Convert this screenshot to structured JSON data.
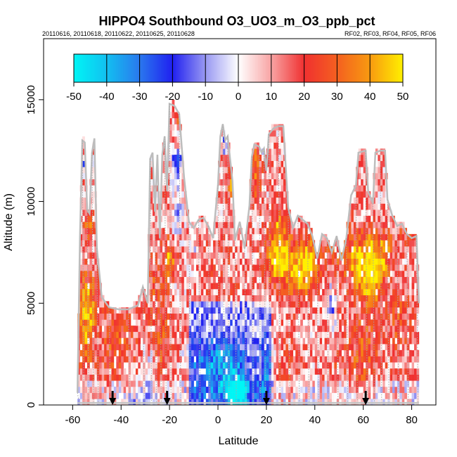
{
  "chart_data": {
    "type": "heatmap",
    "title": "HIPPO4 Southbound O3_UO3_m_O3_ppb_pct",
    "subtitle_left": "20110616, 20110618, 20110622, 20110625, 20110628",
    "subtitle_right": "RF02, RF03, RF04, RF05, RF06",
    "xlabel": "Latitude",
    "ylabel": "Altitude (m)",
    "xlim": [
      -72,
      90
    ],
    "ylim": [
      0,
      18000
    ],
    "x_ticks": [
      -60,
      -40,
      -20,
      0,
      20,
      40,
      60,
      80
    ],
    "y_ticks": [
      0,
      5000,
      10000,
      15000
    ],
    "colorbar": {
      "min": -50,
      "max": 50,
      "ticks": [
        -50,
        -40,
        -30,
        -20,
        -10,
        0,
        10,
        20,
        30,
        40,
        50
      ],
      "stops": [
        {
          "v": -50,
          "c": "#00f5f5"
        },
        {
          "v": -40,
          "c": "#12c0f0"
        },
        {
          "v": -30,
          "c": "#2a78ee"
        },
        {
          "v": -20,
          "c": "#2020f0"
        },
        {
          "v": -10,
          "c": "#9898f2"
        },
        {
          "v": 0,
          "c": "#ffffff"
        },
        {
          "v": 10,
          "c": "#f8a4a4"
        },
        {
          "v": 20,
          "c": "#f03030"
        },
        {
          "v": 30,
          "c": "#f46020"
        },
        {
          "v": 40,
          "c": "#f89a10"
        },
        {
          "v": 50,
          "c": "#fff000"
        }
      ]
    },
    "arrows_latitude": [
      -43.5,
      -21,
      20,
      61
    ],
    "flight_ceiling": [
      [
        -58,
        600
      ],
      [
        -57,
        8200
      ],
      [
        -56,
        13000
      ],
      [
        -55,
        12900
      ],
      [
        -54,
        9600
      ],
      [
        -53,
        9400
      ],
      [
        -52,
        12400
      ],
      [
        -51,
        13100
      ],
      [
        -50,
        7700
      ],
      [
        -48,
        5300
      ],
      [
        -45,
        4800
      ],
      [
        -41,
        4700
      ],
      [
        -37,
        4700
      ],
      [
        -33,
        4900
      ],
      [
        -31,
        5800
      ],
      [
        -29,
        5000
      ],
      [
        -28,
        12100
      ],
      [
        -27,
        12400
      ],
      [
        -26,
        9500
      ],
      [
        -25,
        12300
      ],
      [
        -24,
        8200
      ],
      [
        -23,
        12300
      ],
      [
        -22,
        13200
      ],
      [
        -21,
        10500
      ],
      [
        -20,
        14800
      ],
      [
        -18,
        14700
      ],
      [
        -16,
        14300
      ],
      [
        -14,
        11200
      ],
      [
        -12,
        9000
      ],
      [
        -10,
        8700
      ],
      [
        -8,
        9100
      ],
      [
        -6,
        9200
      ],
      [
        -4,
        8800
      ],
      [
        -2,
        8200
      ],
      [
        0,
        10800
      ],
      [
        1,
        13200
      ],
      [
        2,
        13800
      ],
      [
        3,
        13000
      ],
      [
        4,
        13200
      ],
      [
        6,
        11000
      ],
      [
        7,
        8100
      ],
      [
        9,
        9000
      ],
      [
        11,
        7700
      ],
      [
        13,
        9800
      ],
      [
        14,
        12200
      ],
      [
        15,
        12800
      ],
      [
        17,
        12700
      ],
      [
        18,
        12400
      ],
      [
        19,
        12600
      ],
      [
        20,
        11500
      ],
      [
        21,
        13300
      ],
      [
        23,
        13600
      ],
      [
        25,
        13700
      ],
      [
        27,
        13700
      ],
      [
        29,
        9700
      ],
      [
        31,
        8700
      ],
      [
        33,
        9300
      ],
      [
        35,
        9100
      ],
      [
        37,
        8900
      ],
      [
        39,
        8300
      ],
      [
        41,
        7200
      ],
      [
        43,
        8400
      ],
      [
        45,
        8200
      ],
      [
        47,
        7500
      ],
      [
        49,
        8300
      ],
      [
        51,
        7100
      ],
      [
        53,
        8200
      ],
      [
        55,
        10300
      ],
      [
        57,
        10800
      ],
      [
        58,
        12400
      ],
      [
        61,
        12500
      ],
      [
        62,
        10500
      ],
      [
        64,
        9900
      ],
      [
        65,
        12400
      ],
      [
        67,
        12500
      ],
      [
        69,
        12500
      ],
      [
        70,
        10100
      ],
      [
        72,
        9300
      ],
      [
        74,
        8800
      ],
      [
        76,
        8900
      ],
      [
        78,
        8400
      ],
      [
        80,
        8200
      ],
      [
        82,
        8300
      ],
      [
        83,
        5000
      ]
    ]
  }
}
